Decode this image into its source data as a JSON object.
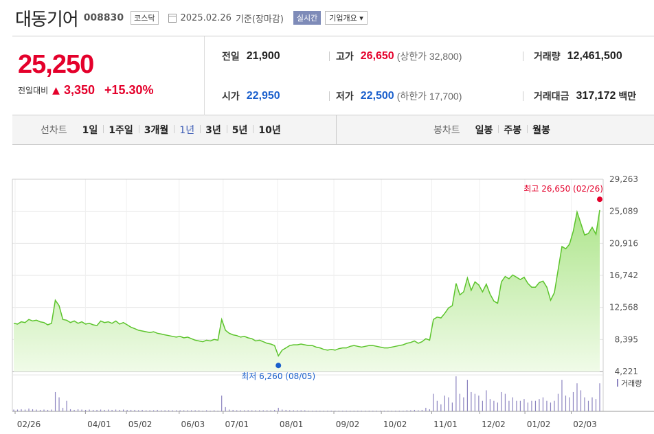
{
  "header": {
    "name": "대동기어",
    "code": "008830",
    "market": "코스닥",
    "date": "2025.02.26",
    "basis": "기준(장마감)",
    "live_label": "실시간",
    "company_btn": "기업개요 ▾"
  },
  "price": {
    "current": "25,250",
    "change_label": "전일대비",
    "change_amount": "3,350",
    "change_percent": "+15.30%"
  },
  "stats": {
    "prev_close_label": "전일",
    "prev_close": "21,900",
    "high_label": "고가",
    "high": "26,650",
    "upper_limit": "(상한가 32,800)",
    "volume_label": "거래량",
    "volume": "12,461,500",
    "open_label": "시가",
    "open": "22,950",
    "low_label": "저가",
    "low": "22,500",
    "lower_limit": "(하한가 17,700)",
    "trade_value_label": "거래대금",
    "trade_value": "317,172",
    "trade_value_unit": "백만"
  },
  "period": {
    "line_title": "선차트",
    "line_items": [
      "1일",
      "1주일",
      "3개월",
      "1년",
      "3년",
      "5년",
      "10년"
    ],
    "active": "1년",
    "candle_title": "봉차트",
    "candle_items": [
      "일봉",
      "주봉",
      "월봉"
    ]
  },
  "chart_data": {
    "type": "area",
    "colors": {
      "line": "#5cc42c",
      "fill_top": "#aee58c",
      "fill_bottom": "#f0fbe8",
      "high": "#e4002b",
      "low": "#1a5fcc",
      "volume": "#8c84c0"
    },
    "y_ticks": [
      "29,263",
      "25,089",
      "20,916",
      "16,742",
      "12,568",
      "8,395",
      "4,221"
    ],
    "ylim": [
      4221,
      29263
    ],
    "x_ticks": [
      "02/26",
      "04/01",
      "05/02",
      "06/03",
      "07/01",
      "08/01",
      "09/02",
      "10/02",
      "11/01",
      "12/02",
      "01/02",
      "02/03"
    ],
    "high_label": "최고 26,650 (02/26)",
    "high_value": 26650,
    "low_label": "최저 6,260 (08/05)",
    "low_value": 6260,
    "volume_legend": "거래량",
    "series": [
      {
        "values": [
          10500,
          10400,
          10700,
          10600,
          11000,
          10800,
          10900,
          10700,
          10600,
          10300,
          10500,
          13500,
          12800,
          11000,
          10900,
          10600,
          10800,
          10500,
          10700,
          10400,
          10500,
          10300,
          10200,
          10800,
          10600,
          10700,
          10500,
          10800,
          10400,
          10600,
          10300,
          10000,
          9800,
          9600,
          9500,
          9400,
          9300,
          9400,
          9200,
          9100,
          9000,
          8900,
          8800,
          8700,
          8800,
          8600,
          8700,
          8500,
          8300,
          8200,
          8100,
          8300,
          8200,
          8400,
          8300,
          11000,
          9600,
          9200,
          9000,
          8900,
          8700,
          8800,
          8600,
          8500,
          8200,
          8300,
          8100,
          7900,
          7800,
          7600,
          6260,
          7000,
          7300,
          7600,
          7700,
          7700,
          7800,
          7700,
          7600,
          7600,
          7400,
          7300,
          7100,
          7000,
          7100,
          7000,
          7200,
          7300,
          7300,
          7500,
          7600,
          7500,
          7400,
          7500,
          7600,
          7600,
          7500,
          7400,
          7300,
          7300,
          7400,
          7500,
          7600,
          7700,
          7900,
          8000,
          8200,
          7900,
          8100,
          8500,
          8300,
          11000,
          11300,
          11200,
          11800,
          12500,
          12800,
          15700,
          14200,
          14600,
          16400,
          14800,
          15900,
          15500,
          14600,
          15600,
          14300,
          13400,
          13100,
          15900,
          16600,
          16300,
          16800,
          16500,
          16200,
          16500,
          15700,
          15200,
          15200,
          15800,
          16000,
          15200,
          13500,
          14500,
          17500,
          20500,
          20200,
          20800,
          22500,
          25000,
          23500,
          22000,
          22200,
          23000,
          22100,
          25250
        ]
      },
      {
        "volume_ratio": [
          0.05,
          0.05,
          0.06,
          0.05,
          0.08,
          0.06,
          0.05,
          0.04,
          0.05,
          0.04,
          0.05,
          0.55,
          0.4,
          0.1,
          0.3,
          0.06,
          0.04,
          0.06,
          0.05,
          0.04,
          0.05,
          0.04,
          0.04,
          0.05,
          0.04,
          0.05,
          0.04,
          0.05,
          0.04,
          0.05,
          0.04,
          0.04,
          0.04,
          0.03,
          0.04,
          0.03,
          0.03,
          0.03,
          0.04,
          0.03,
          0.03,
          0.03,
          0.03,
          0.03,
          0.03,
          0.03,
          0.03,
          0.03,
          0.03,
          0.03,
          0.02,
          0.03,
          0.02,
          0.03,
          0.02,
          0.45,
          0.12,
          0.05,
          0.04,
          0.03,
          0.03,
          0.03,
          0.03,
          0.03,
          0.03,
          0.03,
          0.03,
          0.03,
          0.03,
          0.04,
          0.1,
          0.05,
          0.04,
          0.03,
          0.03,
          0.03,
          0.03,
          0.03,
          0.02,
          0.02,
          0.02,
          0.02,
          0.02,
          0.02,
          0.02,
          0.02,
          0.02,
          0.02,
          0.02,
          0.02,
          0.02,
          0.02,
          0.02,
          0.02,
          0.02,
          0.02,
          0.02,
          0.02,
          0.02,
          0.02,
          0.02,
          0.02,
          0.02,
          0.02,
          0.03,
          0.03,
          0.04,
          0.03,
          0.04,
          0.1,
          0.06,
          0.5,
          0.3,
          0.2,
          0.45,
          0.4,
          0.25,
          1.0,
          0.5,
          0.4,
          0.9,
          0.55,
          0.5,
          0.45,
          0.3,
          0.6,
          0.35,
          0.3,
          0.25,
          0.55,
          0.5,
          0.3,
          0.4,
          0.3,
          0.3,
          0.35,
          0.25,
          0.3,
          0.3,
          0.35,
          0.4,
          0.3,
          0.25,
          0.3,
          0.5,
          0.9,
          0.45,
          0.4,
          0.55,
          0.8,
          0.6,
          0.4,
          0.3,
          0.4,
          0.35,
          0.8
        ]
      }
    ]
  }
}
